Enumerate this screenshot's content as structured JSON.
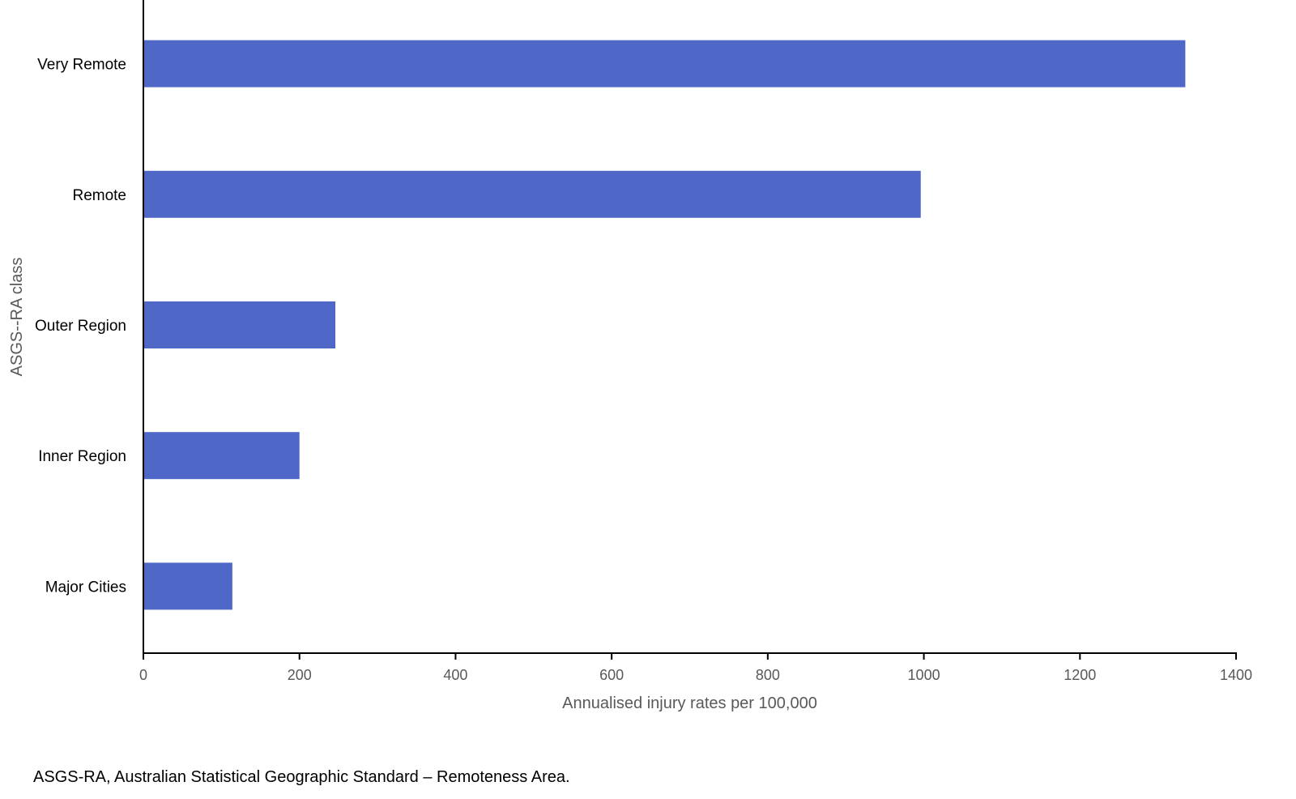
{
  "chart_data": {
    "type": "bar",
    "orientation": "horizontal",
    "categories": [
      "Very Remote",
      "Remote",
      "Outer Region",
      "Inner Region",
      "Major Cities"
    ],
    "values": [
      1335,
      996,
      246,
      200,
      114
    ],
    "xlabel": "Annualised injury rates per 100,000",
    "ylabel": "ASGS--RA class",
    "xlim": [
      0,
      1400
    ],
    "xticks": [
      0,
      200,
      400,
      600,
      800,
      1000,
      1200,
      1400
    ],
    "grid": false,
    "legend": "none",
    "bar_color": "#4f67c7"
  },
  "footnote": "ASGS-RA, Australian Statistical Geographic Standard – Remoteness Area."
}
